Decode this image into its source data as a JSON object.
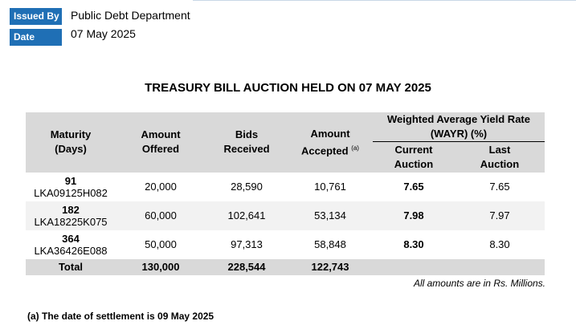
{
  "meta": {
    "issued_by_label": "Issued By",
    "issued_by_value": "Public Debt Department",
    "date_label": "Date",
    "date_value": "07 May 2025"
  },
  "title": "TREASURY BILL AUCTION HELD ON 07 MAY 2025",
  "table": {
    "headers": {
      "maturity_1": "Maturity",
      "maturity_2": "(Days)",
      "offered_1": "Amount",
      "offered_2": "Offered",
      "bids_1": "Bids",
      "bids_2": "Received",
      "accepted_1": "Amount",
      "accepted_2": "Accepted",
      "accepted_sup": "(a)",
      "wayr_1": "Weighted Average Yield Rate",
      "wayr_2": "(WAYR) (%)",
      "current_1": "Current",
      "current_2": "Auction",
      "last_1": "Last",
      "last_2": "Auction"
    },
    "rows": [
      {
        "days": "91",
        "code": "LKA09125H082",
        "offered": "20,000",
        "bids": "28,590",
        "accepted": "10,761",
        "current": "7.65",
        "last": "7.65"
      },
      {
        "days": "182",
        "code": "LKA18225K075",
        "offered": "60,000",
        "bids": "102,641",
        "accepted": "53,134",
        "current": "7.98",
        "last": "7.97"
      },
      {
        "days": "364",
        "code": "LKA36426E088",
        "offered": "50,000",
        "bids": "97,313",
        "accepted": "58,848",
        "current": "8.30",
        "last": "8.30"
      }
    ],
    "total": {
      "label": "Total",
      "offered": "130,000",
      "bids": "228,544",
      "accepted": "122,743"
    }
  },
  "note": "All amounts are in Rs. Millions.",
  "footnote": "(a) The date of settlement is 09 May 2025"
}
